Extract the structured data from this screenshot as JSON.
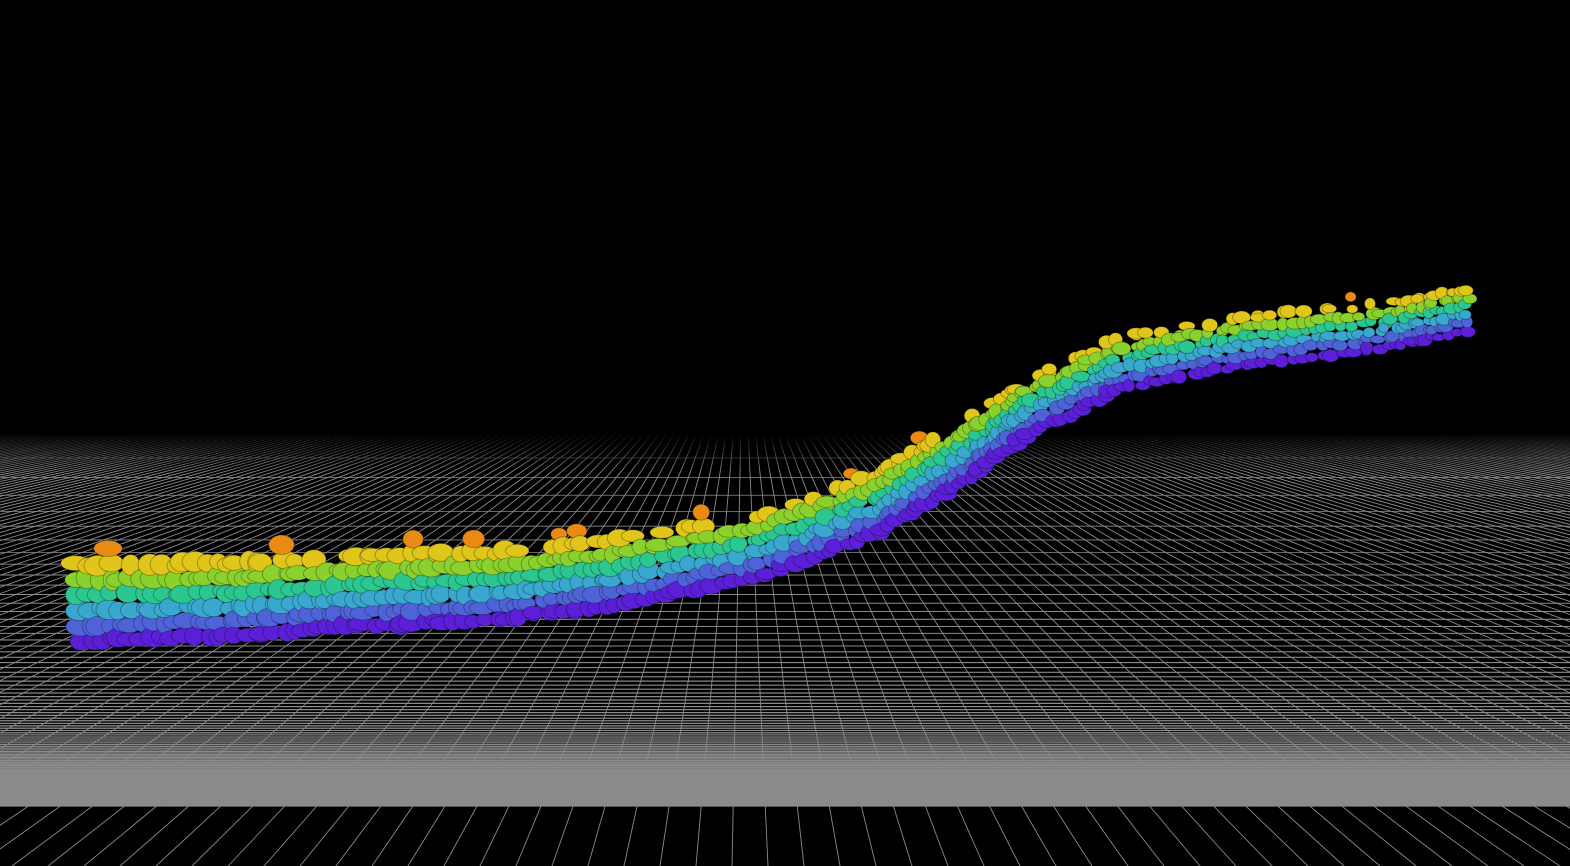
{
  "viewport": {
    "background_color": "#000000",
    "grid_color": "#8a8a8a",
    "grid_visible": true,
    "horizon_fade": true
  },
  "wall": {
    "description_visible_text": "",
    "layer_colors": [
      "#5a1fd6",
      "#4f63d9",
      "#3aa7cf",
      "#2cc690",
      "#8bd12d",
      "#e0c51a",
      "#e98a14"
    ]
  }
}
